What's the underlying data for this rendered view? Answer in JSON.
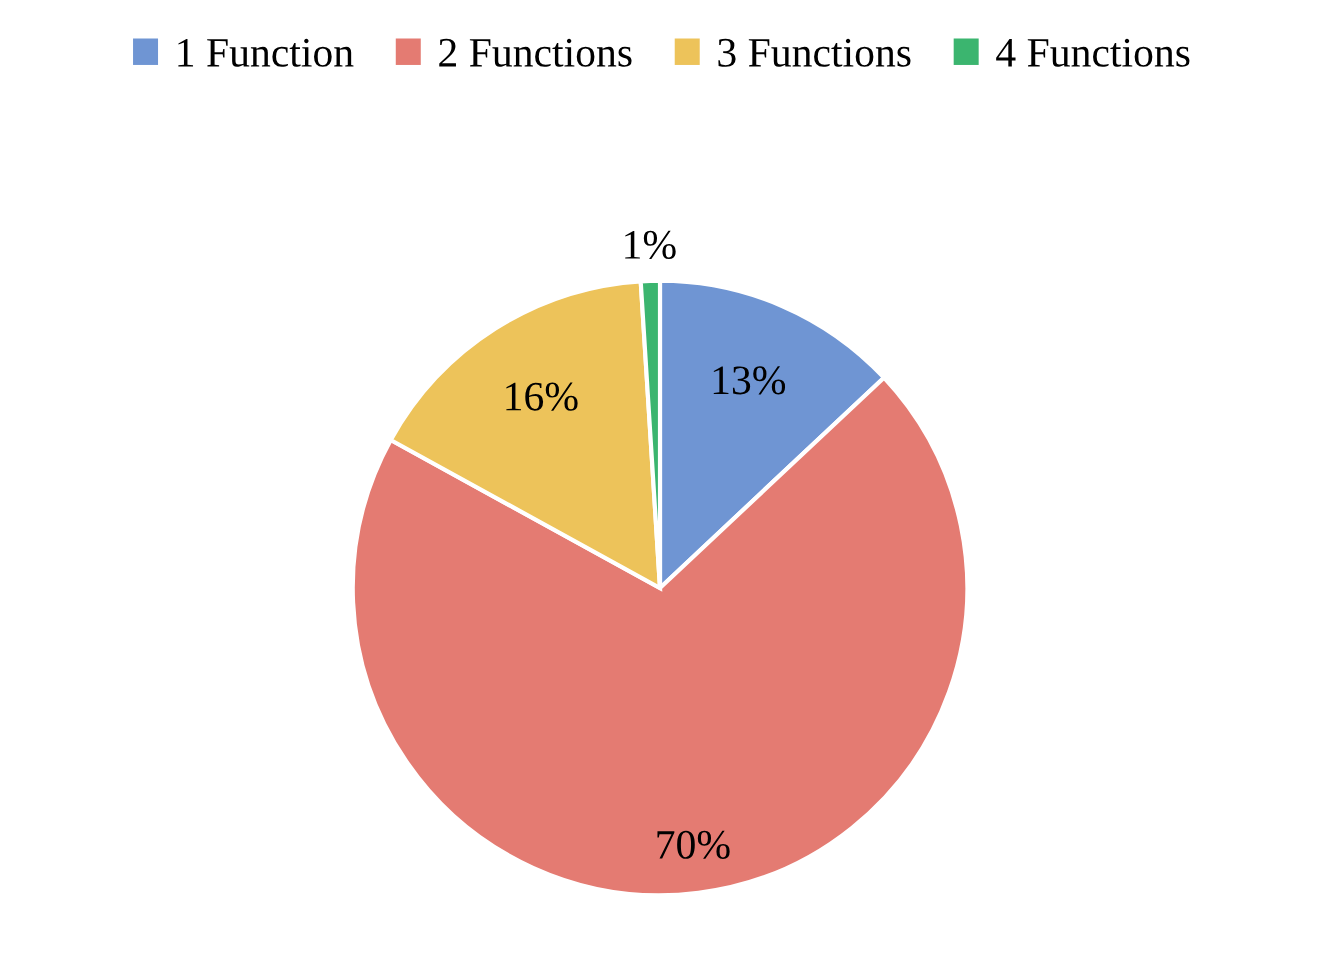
{
  "chart_data": {
    "type": "pie",
    "categories": [
      "1 Function",
      "2 Functions",
      "3 Functions",
      "4 Functions"
    ],
    "values": [
      13,
      70,
      16,
      1
    ],
    "colors": [
      "#6f95d3",
      "#e47b72",
      "#edc35a",
      "#3bb56f"
    ],
    "value_labels": [
      "13%",
      "70%",
      "16%",
      "1%"
    ],
    "legend": "top"
  }
}
